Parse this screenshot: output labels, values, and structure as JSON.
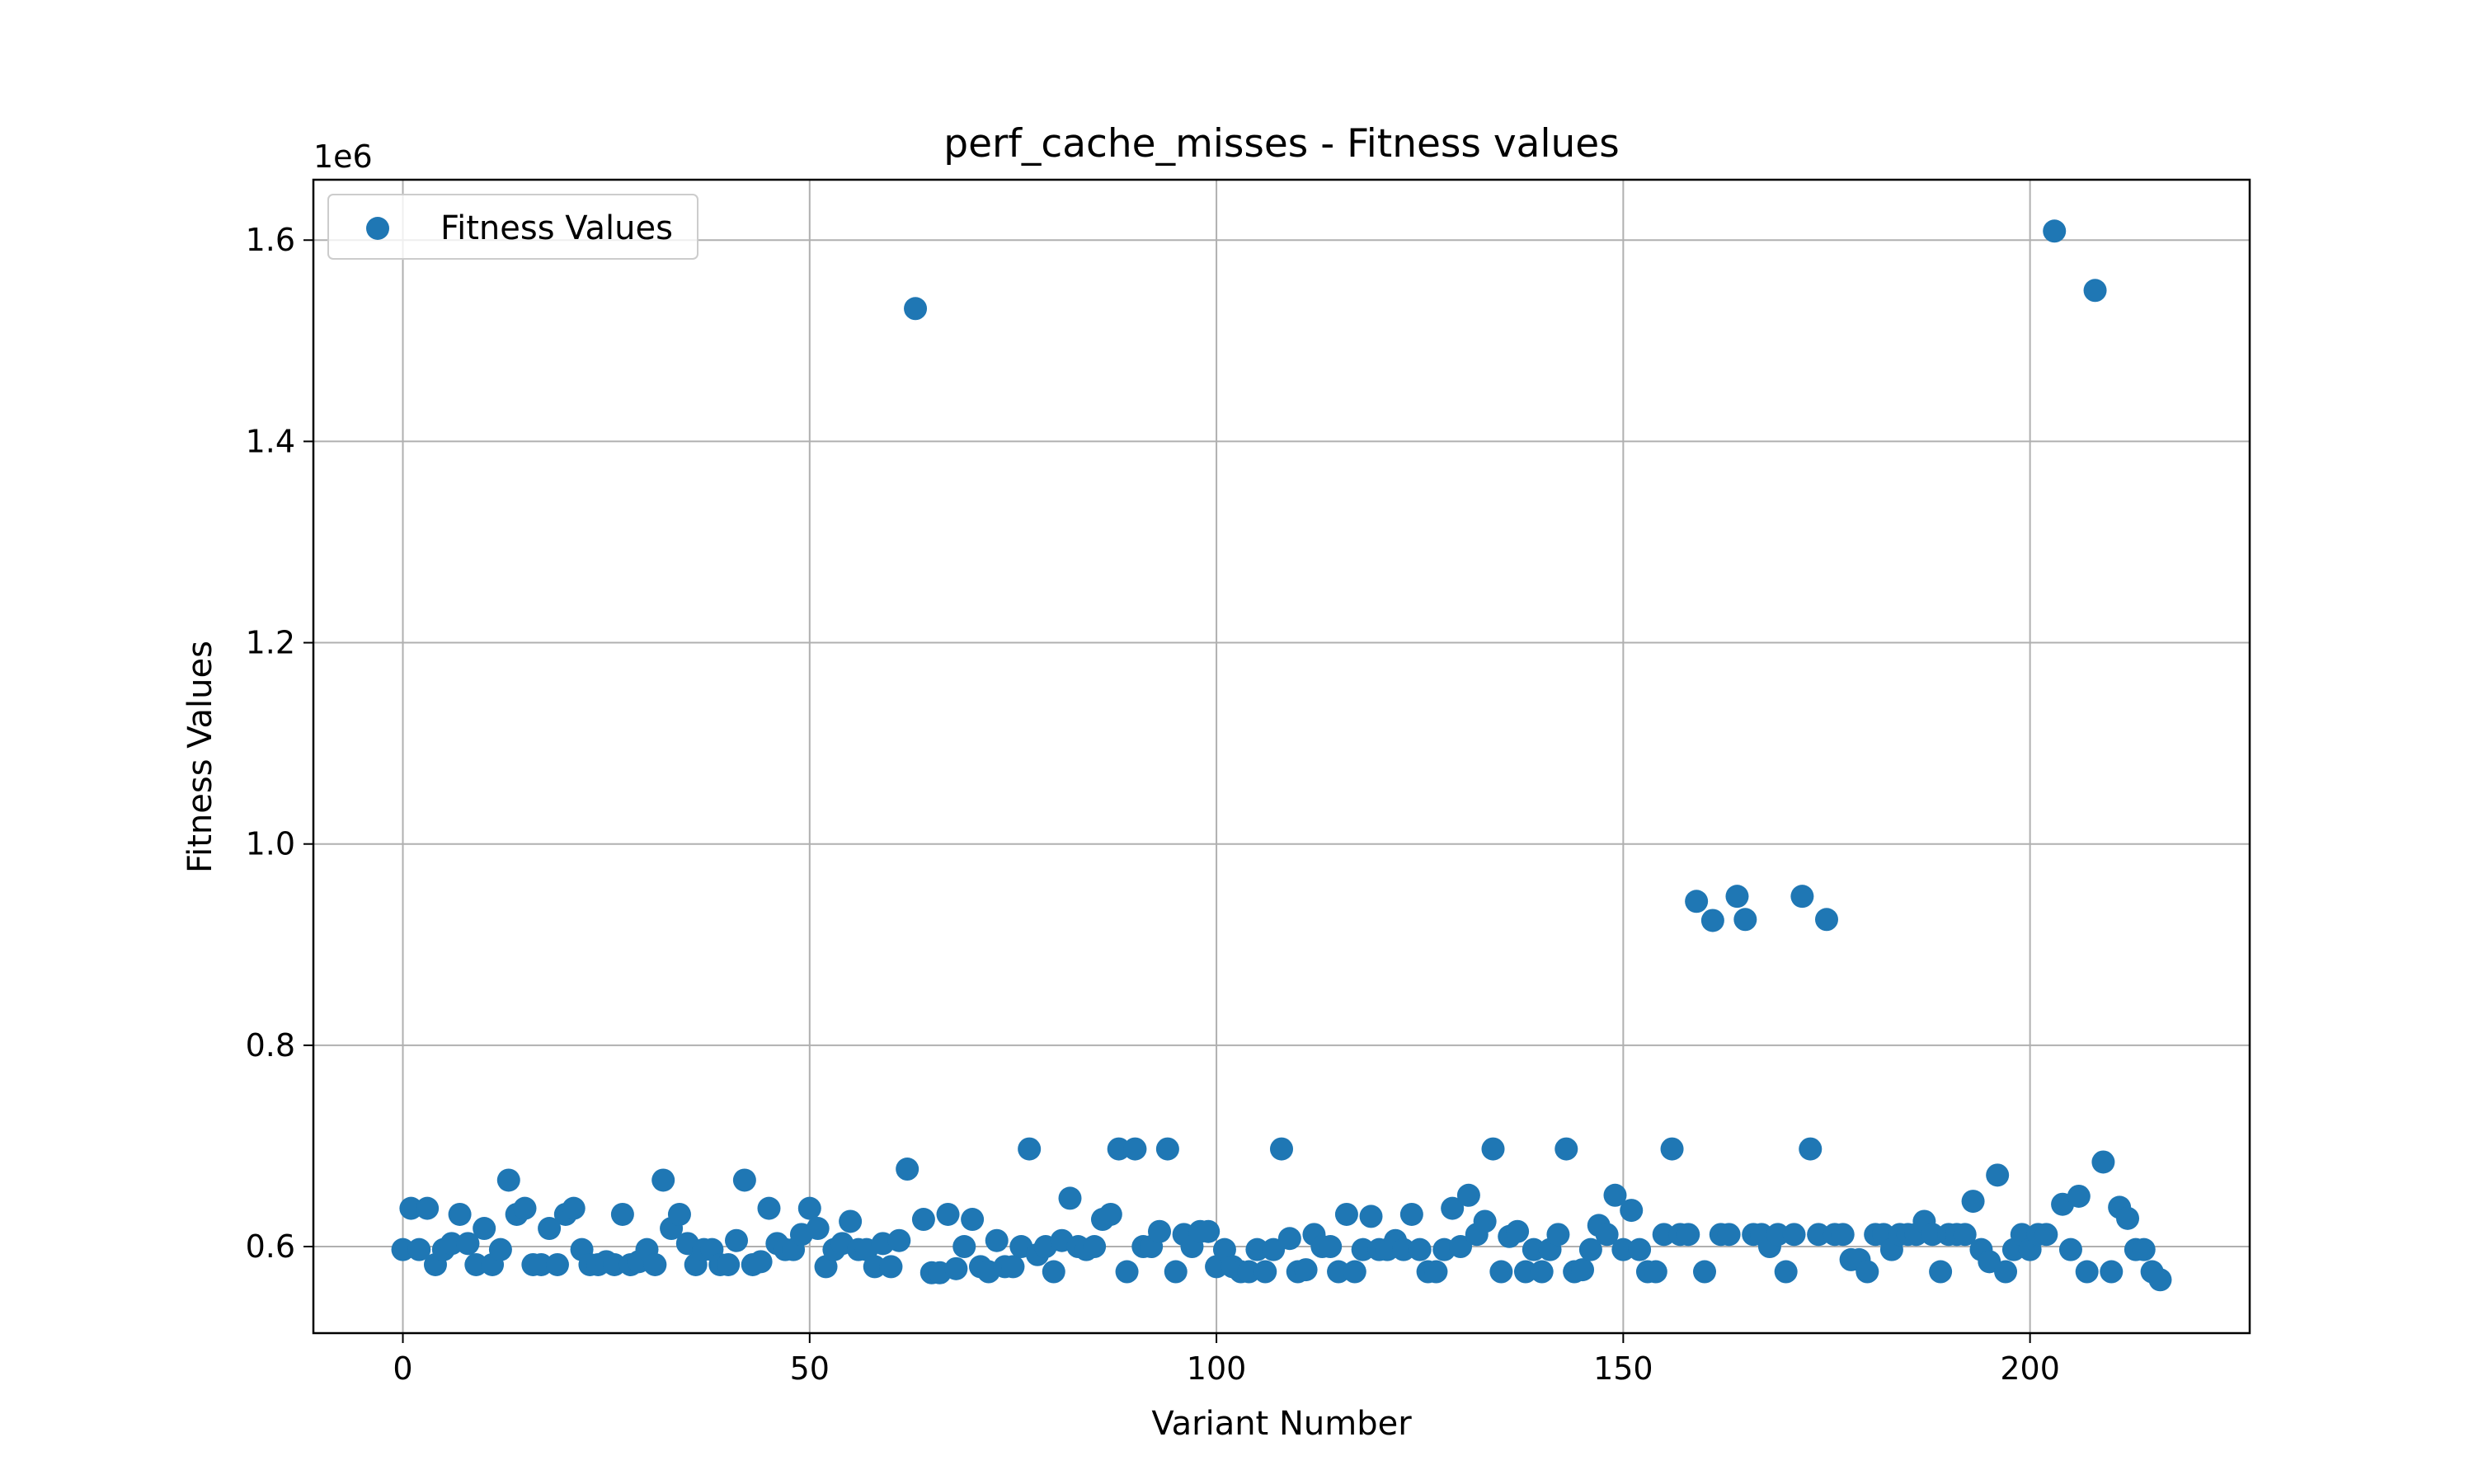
{
  "chart_data": {
    "type": "scatter",
    "title": "perf_cache_misses - Fitness values",
    "xlabel": "Variant Number",
    "ylabel": "Fitness Values",
    "y_offset_label": "1e6",
    "y_scale": 1000000,
    "xlim": [
      -11,
      227
    ],
    "ylim": [
      0.514,
      1.66
    ],
    "xticks": [
      0,
      50,
      100,
      150,
      200
    ],
    "yticks": [
      0.6,
      0.8,
      1.0,
      1.2,
      1.4,
      1.6
    ],
    "ytick_labels": [
      "0.6",
      "0.8",
      "1.0",
      "1.2",
      "1.4",
      "1.6"
    ],
    "grid": true,
    "legend": {
      "position": "top-left",
      "label": "Fitness Values"
    },
    "marker_color": "#1f77b4",
    "series": [
      {
        "name": "Fitness Values",
        "x": [
          0,
          1,
          2,
          3,
          4,
          5,
          6,
          7,
          8,
          9,
          10,
          11,
          12,
          13,
          14,
          15,
          16,
          17,
          18,
          19,
          20,
          21,
          22,
          23,
          24,
          25,
          26,
          27,
          28,
          29,
          30,
          31,
          32,
          33,
          34,
          35,
          36,
          37,
          38,
          39,
          40,
          41,
          42,
          43,
          44,
          45,
          46,
          47,
          48,
          49,
          50,
          51,
          52,
          53,
          54,
          55,
          56,
          57,
          58,
          59,
          60,
          61,
          62,
          63,
          64,
          65,
          66,
          67,
          68,
          69,
          70,
          71,
          72,
          73,
          74,
          75,
          76,
          77,
          78,
          79,
          80,
          81,
          82,
          83,
          84,
          85,
          86,
          87,
          88,
          89,
          90,
          91,
          92,
          93,
          94,
          95,
          96,
          97,
          98,
          99,
          100,
          101,
          102,
          103,
          104,
          105,
          106,
          107,
          108,
          109,
          110,
          111,
          112,
          113,
          114,
          115,
          116,
          117,
          118,
          119,
          120,
          121,
          122,
          123,
          124,
          125,
          126,
          127,
          128,
          129,
          130,
          131,
          132,
          133,
          134,
          135,
          136,
          137,
          138,
          139,
          140,
          141,
          142,
          143,
          144,
          145,
          146,
          147,
          148,
          149,
          150,
          151,
          152,
          153,
          154,
          155,
          156,
          157,
          158,
          159,
          160,
          161,
          162,
          163,
          164,
          165,
          166,
          167,
          168,
          169,
          170,
          171,
          172,
          173,
          174,
          175,
          176,
          177,
          178,
          179,
          180,
          181,
          182,
          183,
          184,
          185,
          186,
          187,
          188,
          189,
          190,
          191,
          192,
          193,
          194,
          195,
          196,
          197,
          198,
          199,
          200,
          201,
          202,
          203,
          204,
          205,
          206,
          207,
          208,
          209,
          210,
          211,
          212,
          213,
          214,
          215,
          216
        ],
        "y": [
          0.597,
          0.638,
          0.597,
          0.638,
          0.582,
          0.597,
          0.603,
          0.632,
          0.603,
          0.582,
          0.618,
          0.582,
          0.597,
          0.666,
          0.632,
          0.638,
          0.582,
          0.582,
          0.618,
          0.582,
          0.632,
          0.638,
          0.597,
          0.582,
          0.582,
          0.585,
          0.582,
          0.632,
          0.582,
          0.585,
          0.597,
          0.582,
          0.666,
          0.618,
          0.632,
          0.603,
          0.582,
          0.597,
          0.597,
          0.582,
          0.582,
          0.606,
          0.666,
          0.582,
          0.585,
          0.638,
          0.603,
          0.597,
          0.597,
          0.612,
          0.638,
          0.618,
          0.58,
          0.597,
          0.603,
          0.625,
          0.597,
          0.597,
          0.58,
          0.603,
          0.58,
          0.606,
          0.677,
          1.532,
          0.627,
          0.574,
          0.574,
          0.632,
          0.578,
          0.6,
          0.627,
          0.58,
          0.575,
          0.606,
          0.58,
          0.58,
          0.6,
          0.697,
          0.592,
          0.6,
          0.575,
          0.606,
          0.648,
          0.6,
          0.597,
          0.6,
          0.627,
          0.632,
          0.697,
          0.575,
          0.697,
          0.6,
          0.6,
          0.615,
          0.697,
          0.575,
          0.612,
          0.6,
          0.615,
          0.615,
          0.58,
          0.597,
          0.58,
          0.575,
          0.575,
          0.597,
          0.575,
          0.597,
          0.697,
          0.608,
          0.575,
          0.577,
          0.612,
          0.6,
          0.6,
          0.575,
          0.632,
          0.575,
          0.597,
          0.63,
          0.597,
          0.597,
          0.606,
          0.597,
          0.632,
          0.597,
          0.575,
          0.575,
          0.597,
          0.638,
          0.6,
          0.651,
          0.612,
          0.625,
          0.697,
          0.575,
          0.61,
          0.615,
          0.575,
          0.597,
          0.575,
          0.597,
          0.612,
          0.697,
          0.575,
          0.577,
          0.597,
          0.621,
          0.612,
          0.651,
          0.597,
          0.636,
          0.597,
          0.575,
          0.575,
          0.612,
          0.697,
          0.612,
          0.612,
          0.943,
          0.575,
          0.924,
          0.612,
          0.612,
          0.948,
          0.925,
          0.612,
          0.612,
          0.6,
          0.612,
          0.575,
          0.612,
          0.948,
          0.697,
          0.612,
          0.925,
          0.612,
          0.612,
          0.587,
          0.587,
          0.575,
          0.612,
          0.612,
          0.597,
          0.612,
          0.612,
          0.612,
          0.625,
          0.612,
          0.575,
          0.612,
          0.612,
          0.612,
          0.645,
          0.597,
          0.585,
          0.671,
          0.575,
          0.597,
          0.612,
          0.597,
          0.612,
          0.612,
          1.609,
          0.642,
          0.597,
          0.65,
          0.575,
          1.55,
          0.684,
          0.575,
          0.639,
          0.628,
          0.597,
          0.597,
          0.575,
          0.567
        ]
      }
    ]
  }
}
